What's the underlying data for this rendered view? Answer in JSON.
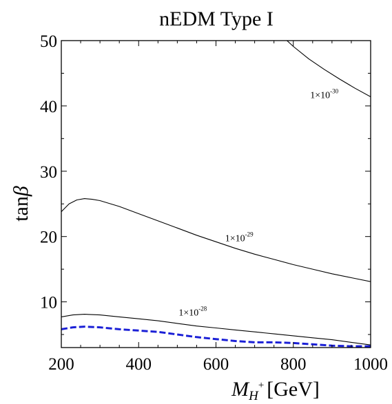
{
  "chart_data": {
    "type": "line",
    "title": "nEDM Type I",
    "xlabel": {
      "main": "M",
      "sub": "H",
      "sup": "+",
      "unit": "[GeV]"
    },
    "ylabel": {
      "prefix": "tan",
      "symbol": "β"
    },
    "xlim": [
      200,
      1000
    ],
    "ylim": [
      3,
      50
    ],
    "xticks": [
      200,
      400,
      600,
      800,
      1000
    ],
    "yticks": [
      10,
      20,
      30,
      40,
      50
    ],
    "grid": false,
    "series": [
      {
        "label": {
          "mantissa": "1×10",
          "exponent": "-30",
          "x": 880,
          "y": 41.2
        },
        "color": "#000000",
        "style": "solid",
        "x": [
          780,
          800,
          840,
          880,
          920,
          960,
          1000
        ],
        "y": [
          50.2,
          49.1,
          47.2,
          45.6,
          44.1,
          42.7,
          41.4
        ]
      },
      {
        "label": {
          "mantissa": "1×10",
          "exponent": "-29",
          "x": 660,
          "y": 19.3
        },
        "color": "#000000",
        "style": "solid",
        "x": [
          200,
          220,
          240,
          260,
          280,
          300,
          350,
          400,
          450,
          500,
          550,
          600,
          650,
          700,
          750,
          800,
          850,
          900,
          950,
          1000
        ],
        "y": [
          23.8,
          25.0,
          25.6,
          25.8,
          25.7,
          25.5,
          24.6,
          23.5,
          22.4,
          21.3,
          20.2,
          19.2,
          18.2,
          17.3,
          16.5,
          15.7,
          15.0,
          14.3,
          13.7,
          13.1
        ]
      },
      {
        "label": {
          "mantissa": "1×10",
          "exponent": "-28",
          "x": 540,
          "y": 7.9
        },
        "color": "#000000",
        "style": "solid",
        "x": [
          200,
          230,
          260,
          300,
          350,
          400,
          450,
          500,
          550,
          600,
          650,
          700,
          750,
          800,
          850,
          900,
          950,
          1000
        ],
        "y": [
          7.7,
          8.0,
          8.1,
          8.0,
          7.7,
          7.4,
          7.1,
          6.7,
          6.3,
          6.0,
          5.7,
          5.4,
          5.1,
          4.8,
          4.5,
          4.2,
          3.8,
          3.4
        ]
      },
      {
        "color": "#1a1fd6",
        "style": "dashed",
        "x": [
          200,
          230,
          260,
          300,
          350,
          400,
          450,
          500,
          550,
          600,
          650,
          700,
          750,
          800,
          850,
          900,
          950,
          1000
        ],
        "y": [
          5.8,
          6.1,
          6.2,
          6.1,
          5.8,
          5.6,
          5.4,
          5.0,
          4.6,
          4.3,
          4.0,
          3.8,
          3.8,
          3.7,
          3.5,
          3.3,
          3.2,
          3.2
        ]
      }
    ]
  }
}
